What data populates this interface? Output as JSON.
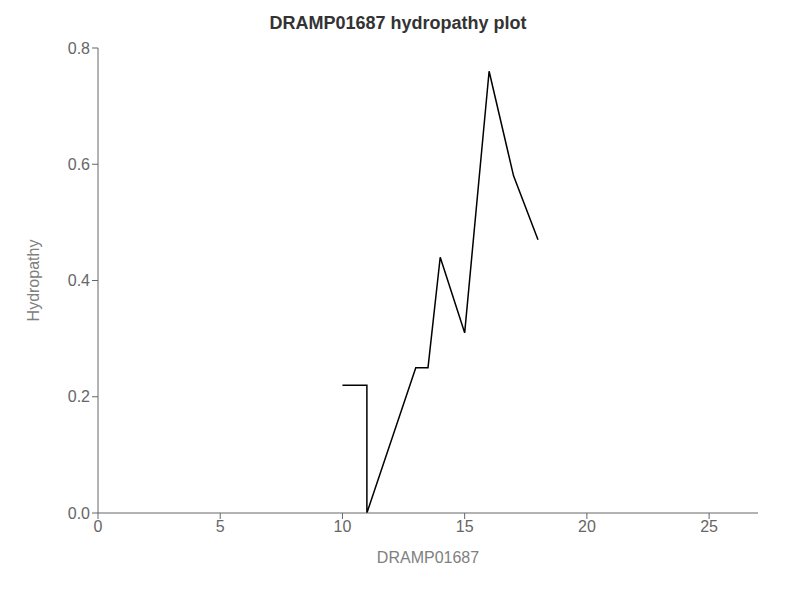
{
  "chart_data": {
    "type": "line",
    "title": "DRAMP01687 hydropathy plot",
    "xlabel": "DRAMP01687",
    "ylabel": "Hydropathy",
    "x": [
      10,
      11,
      11,
      13,
      13.5,
      14,
      15,
      16,
      17,
      18
    ],
    "values": [
      0.22,
      0.22,
      0.0,
      0.25,
      0.25,
      0.44,
      0.31,
      0.76,
      0.58,
      0.47
    ],
    "color": "#000000",
    "xlim": [
      0,
      27
    ],
    "ylim": [
      0.0,
      0.8
    ],
    "xticks": [
      0,
      5,
      10,
      15,
      20,
      25
    ],
    "yticks": [
      {
        "value": 0,
        "label": "0.0"
      },
      0.2,
      0.4,
      0.6,
      0.8
    ],
    "grid": false
  }
}
